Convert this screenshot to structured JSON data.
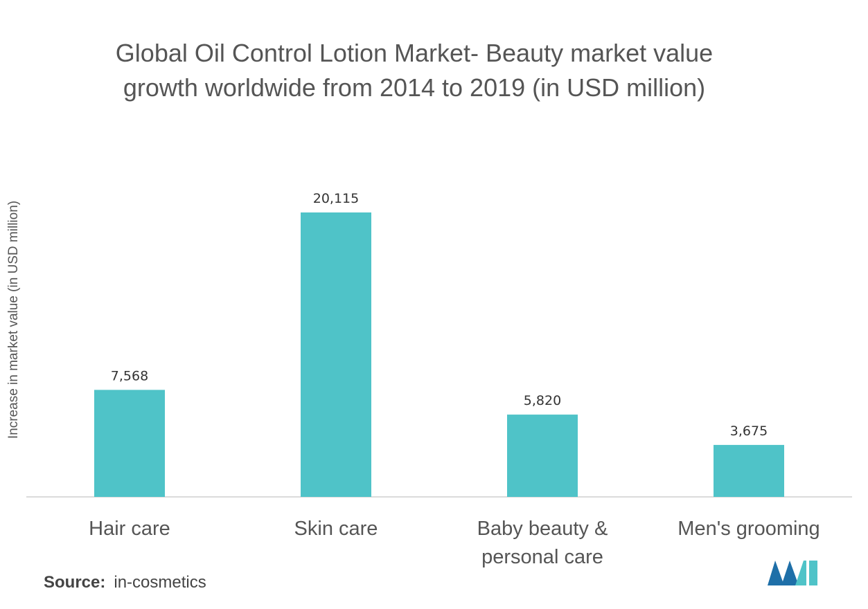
{
  "chart_data": {
    "type": "bar",
    "title_lines": [
      "Global Oil Control Lotion Market- Beauty market value",
      "growth worldwide from 2014 to 2019 (in USD million)"
    ],
    "ylabel": "Increase in market value (in USD million)",
    "xlabel": "",
    "categories": [
      [
        "Hair care"
      ],
      [
        "Skin care"
      ],
      [
        "Baby beauty &",
        "personal care"
      ],
      [
        "Men's grooming"
      ]
    ],
    "values": [
      7568,
      20115,
      5820,
      3675
    ],
    "value_labels": [
      "7,568",
      "20,115",
      "5,820",
      "3,675"
    ],
    "ylim": [
      0,
      20115
    ],
    "bar_color": "#4fc3c8",
    "grid": false,
    "legend": "none"
  },
  "source": {
    "label": "Source:",
    "value": "in-cosmetics"
  },
  "logo": {
    "icon": "mordor-intelligence-logo",
    "colors": [
      "#1e6fa8",
      "#4fc3c8"
    ]
  }
}
